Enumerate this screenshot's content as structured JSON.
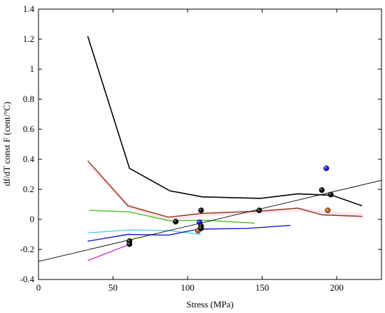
{
  "chart_data": {
    "type": "line",
    "title": "",
    "xlabel": "Stress (MPa)",
    "ylabel": "df/dT const F (cent/°C)",
    "xlim": [
      0,
      230
    ],
    "ylim": [
      -0.4,
      1.4
    ],
    "xticks": [
      0,
      50,
      100,
      150,
      200
    ],
    "yticks": [
      -0.4,
      -0.2,
      0,
      0.2,
      0.4,
      0.6,
      0.8,
      1,
      1.2,
      1.4
    ],
    "ytick_labels": [
      "-0.4",
      "-0.2",
      "0",
      "0.2",
      "0.4",
      "0.6",
      "0.8",
      "1",
      "1.2",
      "1.4"
    ],
    "grid": false,
    "series": [
      {
        "color": "#000000",
        "width": 1.6,
        "x": [
          33,
          61,
          88,
          110,
          149,
          174,
          197,
          217
        ],
        "y": [
          1.22,
          0.34,
          0.19,
          0.15,
          0.14,
          0.17,
          0.16,
          0.09
        ]
      },
      {
        "color": "#8b3a0f",
        "width": 1.4,
        "x": [
          33,
          60,
          87,
          110,
          149,
          174,
          190,
          217
        ],
        "y": [
          0.39,
          0.09,
          0.015,
          0.04,
          0.055,
          0.075,
          0.03,
          0.02
        ]
      },
      {
        "color": "#44c21a",
        "width": 1.4,
        "x": [
          34,
          61,
          88,
          110,
          145
        ],
        "y": [
          0.06,
          0.05,
          -0.01,
          -0.005,
          -0.025
        ]
      },
      {
        "color": "#55ccee",
        "width": 1.4,
        "x": [
          33,
          61,
          88,
          109
        ],
        "y": [
          -0.09,
          -0.07,
          -0.075,
          -0.1
        ]
      },
      {
        "color": "#1a1acc",
        "width": 1.4,
        "x": [
          33,
          60,
          87,
          107,
          140,
          169
        ],
        "y": [
          -0.145,
          -0.1,
          -0.105,
          -0.065,
          -0.06,
          -0.04
        ]
      },
      {
        "color": "#cc33cc",
        "width": 1.4,
        "x": [
          33,
          60
        ],
        "y": [
          -0.275,
          -0.17
        ]
      },
      {
        "color": "#000000",
        "width": 0.9,
        "x": [
          0,
          230
        ],
        "y": [
          -0.28,
          0.26
        ]
      }
    ],
    "points": [
      {
        "x": 61,
        "y": -0.145,
        "color": "#111111"
      },
      {
        "x": 61,
        "y": -0.165,
        "color": "#111111"
      },
      {
        "x": 92,
        "y": -0.015,
        "color": "#111111"
      },
      {
        "x": 109,
        "y": 0.06,
        "color": "#111111"
      },
      {
        "x": 108,
        "y": -0.02,
        "color": "#1a1aee"
      },
      {
        "x": 107,
        "y": -0.075,
        "color": "#b8642a"
      },
      {
        "x": 109,
        "y": -0.045,
        "color": "#111111"
      },
      {
        "x": 109,
        "y": -0.06,
        "color": "#111111"
      },
      {
        "x": 148,
        "y": 0.06,
        "color": "#111111"
      },
      {
        "x": 190,
        "y": 0.195,
        "color": "#111111"
      },
      {
        "x": 196,
        "y": 0.165,
        "color": "#111111"
      },
      {
        "x": 193,
        "y": 0.34,
        "color": "#2222ee"
      },
      {
        "x": 194,
        "y": 0.06,
        "color": "#b8642a"
      }
    ]
  }
}
